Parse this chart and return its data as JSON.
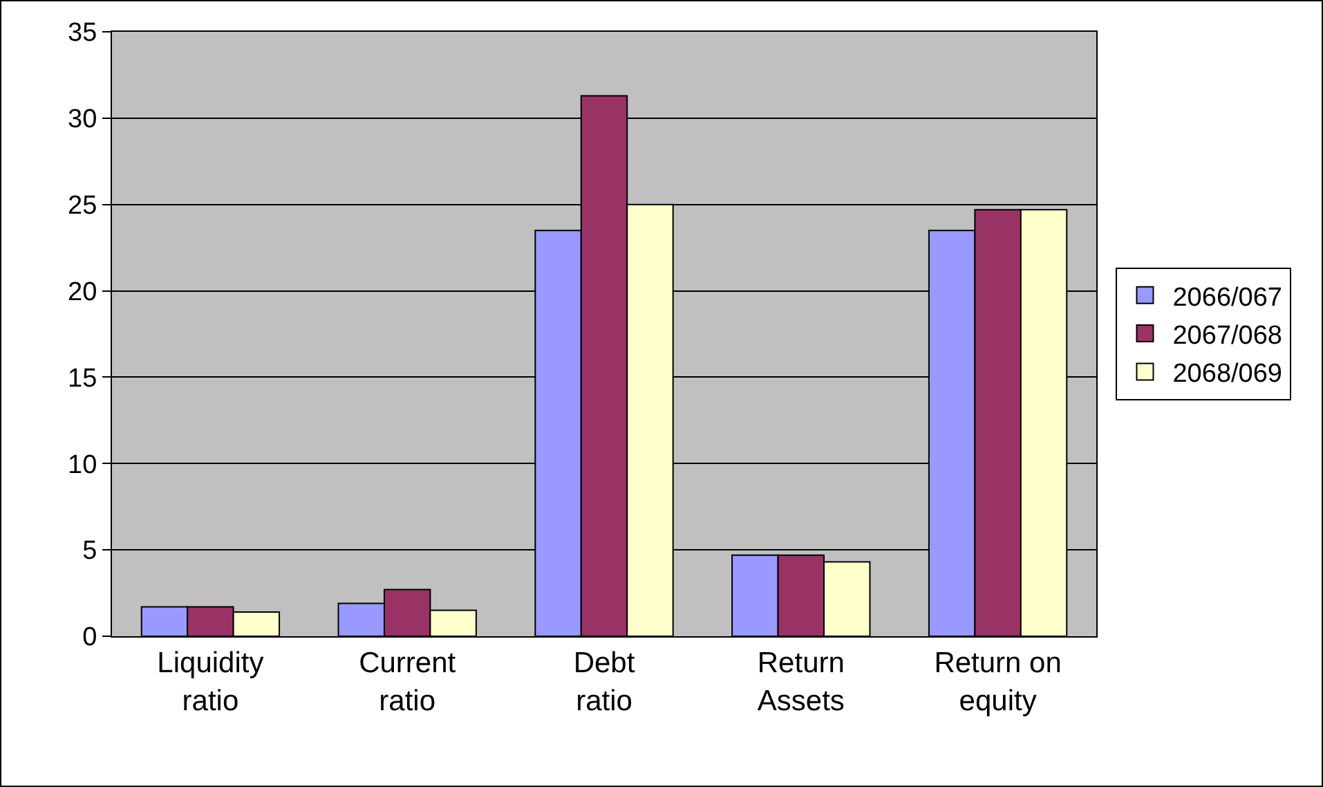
{
  "chart_data": {
    "type": "bar",
    "categories": [
      "Liquidity ratio",
      "Current ratio",
      "Debt ratio",
      "Return Assets",
      "Return on equity"
    ],
    "series": [
      {
        "name": "2066/067",
        "color": "#9999ff",
        "values": [
          1.7,
          1.9,
          23.5,
          4.7,
          23.5
        ]
      },
      {
        "name": "2067/068",
        "color": "#993366",
        "values": [
          1.7,
          2.7,
          31.3,
          4.7,
          24.7
        ]
      },
      {
        "name": "2068/069",
        "color": "#ffffcc",
        "values": [
          1.4,
          1.5,
          25,
          4.3,
          24.7
        ]
      }
    ],
    "ylim": [
      0,
      35
    ],
    "yticks": [
      0,
      5,
      10,
      15,
      20,
      25,
      30,
      35
    ],
    "grid": "y",
    "legend": "right"
  }
}
